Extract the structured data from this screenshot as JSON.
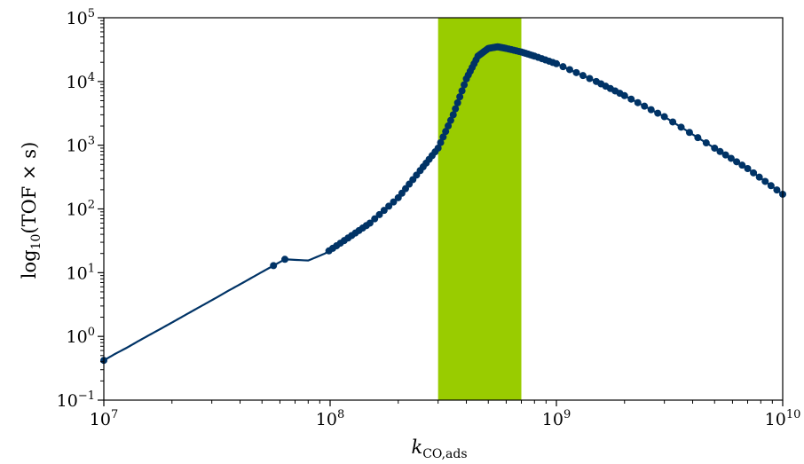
{
  "chart_data": {
    "type": "scatter",
    "xscale": "log",
    "yscale": "log",
    "xlim": [
      10000000,
      10000000000
    ],
    "ylim": [
      0.1,
      100000
    ],
    "xticks": [
      {
        "base": "10",
        "exp": "7",
        "value": 10000000
      },
      {
        "base": "10",
        "exp": "8",
        "value": 100000000
      },
      {
        "base": "10",
        "exp": "9",
        "value": 1000000000
      },
      {
        "base": "10",
        "exp": "10",
        "value": 10000000000
      }
    ],
    "yticks": [
      {
        "base": "10",
        "exp": "−1",
        "value": 0.1
      },
      {
        "base": "10",
        "exp": "0",
        "value": 1
      },
      {
        "base": "10",
        "exp": "1",
        "value": 10
      },
      {
        "base": "10",
        "exp": "2",
        "value": 100
      },
      {
        "base": "10",
        "exp": "3",
        "value": 1000
      },
      {
        "base": "10",
        "exp": "4",
        "value": 10000
      },
      {
        "base": "10",
        "exp": "5",
        "value": 100000
      }
    ],
    "xlabel": {
      "main": "k",
      "sub": "CO,ads"
    },
    "ylabel": {
      "pre": "log",
      "sub": "10",
      "post": "(TOF × s)"
    },
    "grid": false,
    "highlight_band": {
      "x": [
        300000000,
        700000000
      ],
      "color": "#99cc00"
    },
    "series": [
      {
        "color": "#003366",
        "x": [
          10000000,
          11200000,
          12600000,
          14100000,
          15800000,
          17800000,
          20000000,
          22400000,
          25100000,
          28200000,
          31600000,
          35500000,
          39800000,
          44700000,
          50100000,
          56200000,
          63100000,
          80000000,
          95000000,
          120000000,
          150000000,
          200000000,
          250000000,
          300000000,
          350000000,
          400000000,
          450000000,
          500000000,
          550000000,
          600000000,
          700000000,
          800000000,
          1000000000,
          1500000000,
          2000000000,
          3000000000,
          5000000000,
          7000000000,
          10000000000
        ],
        "y": [
          0.42,
          0.53,
          0.66,
          0.83,
          1.04,
          1.31,
          1.65,
          2.07,
          2.6,
          3.27,
          4.1,
          5.2,
          6.5,
          8.2,
          10.3,
          12.9,
          16.2,
          15.5,
          20,
          35,
          60,
          150,
          400,
          900,
          3000,
          11000,
          25000,
          33000,
          35000,
          33000,
          29000,
          25000,
          19000,
          10000,
          6000,
          2800,
          900,
          430,
          170
        ]
      }
    ]
  }
}
